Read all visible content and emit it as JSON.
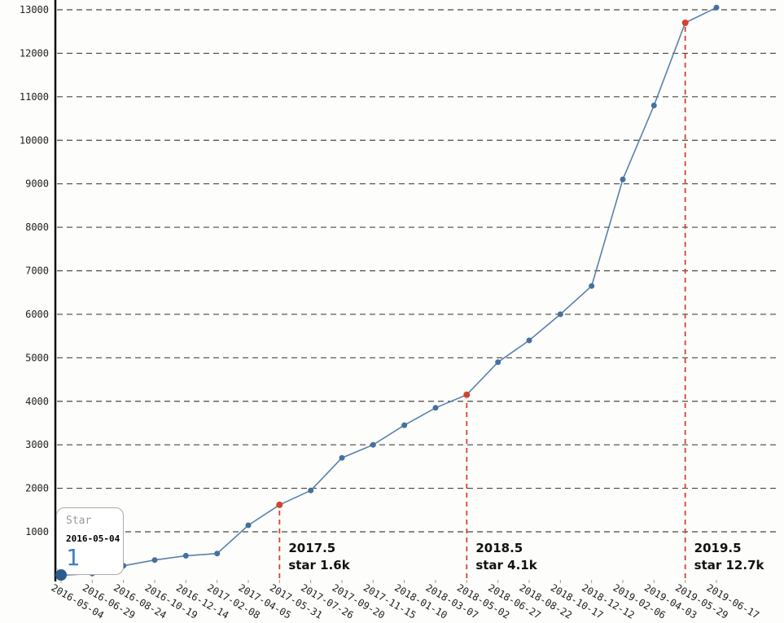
{
  "chart_data": {
    "type": "line",
    "title": "",
    "series_name": "Star",
    "categories": [
      "2016-05-04",
      "2016-06-29",
      "2016-08-24",
      "2016-10-19",
      "2016-12-14",
      "2017-02-08",
      "2017-04-05",
      "2017-05-31",
      "2017-07-26",
      "2017-09-20",
      "2017-11-15",
      "2018-01-10",
      "2018-03-07",
      "2018-05-02",
      "2018-06-27",
      "2018-08-22",
      "2018-10-17",
      "2018-12-12",
      "2019-02-06",
      "2019-04-03",
      "2019-05-29",
      "2019-06-17"
    ],
    "values": [
      1,
      40,
      220,
      350,
      450,
      500,
      1150,
      1620,
      1950,
      2700,
      3000,
      3450,
      3850,
      4150,
      4900,
      5400,
      6000,
      6650,
      9100,
      10800,
      12700,
      13050
    ],
    "xlabel": "",
    "ylabel": "",
    "ylim": [
      0,
      13250
    ],
    "yticks": [
      1000,
      2000,
      3000,
      4000,
      5000,
      6000,
      7000,
      8000,
      9000,
      10000,
      11000,
      12000,
      13000
    ],
    "grid": true,
    "legend_position": "none",
    "annotations": [
      {
        "category_index": 7,
        "label_line1": "2017.5",
        "label_line2": "star 1.6k",
        "value": 1620
      },
      {
        "category_index": 13,
        "label_line1": "2018.5",
        "label_line2": "star 4.1k",
        "value": 4150
      },
      {
        "category_index": 20,
        "label_line1": "2019.5",
        "label_line2": "star 12.7k",
        "value": 12700
      }
    ],
    "tooltip": {
      "series": "Star",
      "date": "2016-05-04",
      "value": "1",
      "value_color": "#3f7fbf"
    },
    "colors": {
      "line": "#5b81aa",
      "point": "#44719e",
      "first_point": "#2c5c8c",
      "annotation": "#d4432c",
      "annotation_text": "#111111",
      "grid": "#474747",
      "axis": "#0a0a0a",
      "tick_label": "#1f1f1f"
    }
  }
}
